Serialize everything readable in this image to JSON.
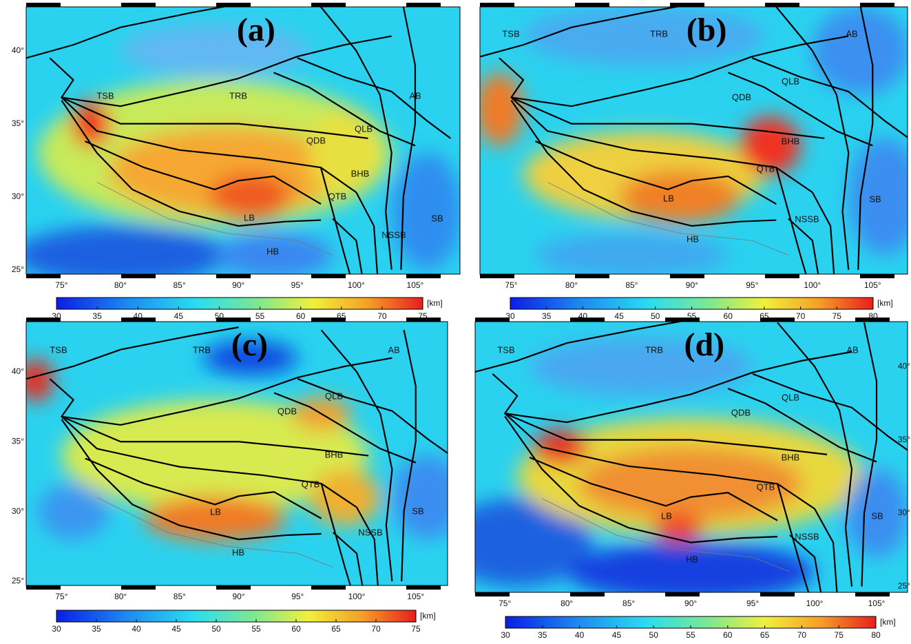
{
  "panels": [
    {
      "label": "(a)",
      "regions": [
        "TSB",
        "TRB",
        "AB",
        "QLB",
        "QDB",
        "BHB",
        "QTB",
        "LB",
        "HB",
        "NSSB",
        "SB"
      ],
      "lon_ticks": [
        "75°",
        "80°",
        "85°",
        "90°",
        "95°",
        "100°",
        "105°"
      ],
      "lat_ticks": [
        "40°",
        "35°",
        "30°",
        "25°"
      ],
      "colorbar": {
        "ticks": [
          30,
          35,
          40,
          45,
          50,
          55,
          60,
          65,
          70,
          75
        ],
        "unit": "[km]"
      }
    },
    {
      "label": "(b)",
      "regions": [
        "TSB",
        "TRB",
        "AB",
        "QLB",
        "QDB",
        "BHB",
        "QTB",
        "LB",
        "HB",
        "NSSB",
        "SB"
      ],
      "lon_ticks": [
        "75°",
        "80°",
        "85°",
        "90°",
        "95°",
        "100°",
        "105°"
      ],
      "colorbar": {
        "ticks": [
          30,
          35,
          40,
          45,
          50,
          55,
          60,
          65,
          70,
          75,
          80
        ],
        "unit": "[km]"
      }
    },
    {
      "label": "(c)",
      "regions": [
        "TSB",
        "TRB",
        "AB",
        "QLB",
        "QDB",
        "BHB",
        "QTB",
        "LB",
        "HB",
        "NSSB",
        "SB"
      ],
      "lon_ticks": [
        "75°",
        "80°",
        "85°",
        "90°",
        "95°",
        "100°",
        "105°"
      ],
      "lat_ticks": [
        "40°",
        "35°",
        "30°",
        "25°"
      ],
      "colorbar": {
        "ticks": [
          30,
          35,
          40,
          45,
          50,
          55,
          60,
          65,
          70,
          75
        ],
        "unit": "[km]"
      }
    },
    {
      "label": "(d)",
      "regions": [
        "TSB",
        "TRB",
        "AB",
        "QLB",
        "QDB",
        "BHB",
        "QTB",
        "LB",
        "HB",
        "NSSB",
        "SB"
      ],
      "lon_ticks": [
        "75°",
        "80°",
        "85°",
        "90°",
        "95°",
        "100°",
        "105°"
      ],
      "lat_ticks": [
        "40°",
        "35°",
        "30°",
        "25°"
      ],
      "colorbar": {
        "ticks": [
          30,
          35,
          40,
          45,
          50,
          55,
          60,
          65,
          70,
          75,
          80
        ],
        "unit": "[km]"
      }
    }
  ]
}
